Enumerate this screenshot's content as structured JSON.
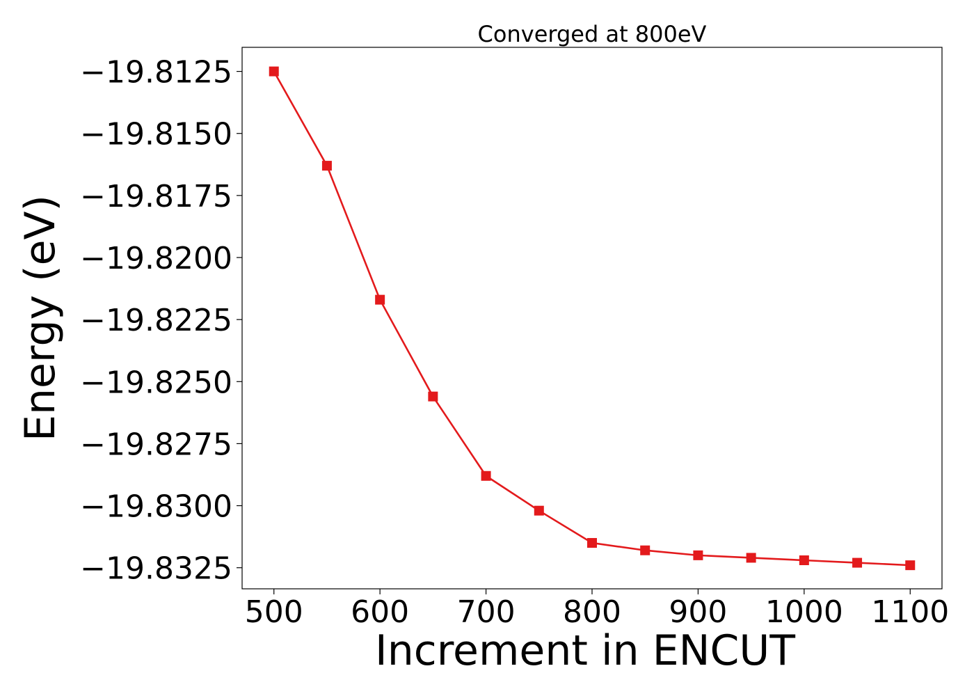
{
  "chart_data": {
    "type": "line",
    "title": "Converged at 800eV",
    "xlabel": "Increment in ENCUT",
    "ylabel": "Energy (eV)",
    "x": [
      500,
      550,
      600,
      650,
      700,
      750,
      800,
      850,
      900,
      950,
      1000,
      1050,
      1100
    ],
    "series": [
      {
        "values": [
          -19.8125,
          -19.8163,
          -19.8217,
          -19.8256,
          -19.8288,
          -19.8302,
          -19.8315,
          -19.8318,
          -19.832,
          -19.8321,
          -19.8322,
          -19.8323,
          -19.8324
        ]
      }
    ],
    "x_ticks": [
      500,
      600,
      700,
      800,
      900,
      1000,
      1100
    ],
    "x_tick_labels": [
      "500",
      "600",
      "700",
      "800",
      "900",
      "1000",
      "1100"
    ],
    "y_ticks": [
      -19.8125,
      -19.815,
      -19.8175,
      -19.82,
      -19.8225,
      -19.825,
      -19.8275,
      -19.83,
      -19.8325
    ],
    "y_tick_labels": [
      "−19.8125",
      "−19.8150",
      "−19.8175",
      "−19.8200",
      "−19.8225",
      "−19.8250",
      "−19.8275",
      "−19.8300",
      "−19.8325"
    ],
    "xlim": [
      470,
      1130
    ],
    "ylim": [
      -19.83335,
      -19.81153
    ],
    "grid": false,
    "legend": false,
    "marker": "square",
    "line_color": "#e31a1c"
  }
}
